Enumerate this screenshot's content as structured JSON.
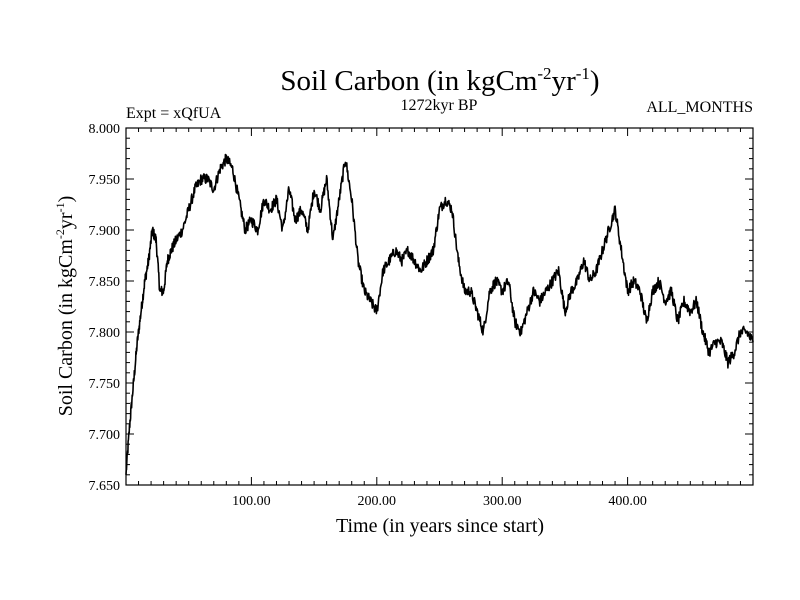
{
  "chart_data": {
    "type": "line",
    "title": {
      "base": "Soil Carbon (in kgCm",
      "sup1": "-2",
      "mid": "yr",
      "sup2": "-1",
      "end": ")"
    },
    "subtitle_left": "Expt = xQfUA",
    "subtitle_center": "1272kyr BP",
    "subtitle_right": "ALL_MONTHS",
    "xlabel": "Time (in years since start)",
    "ylabel": {
      "base": "Soil Carbon (in kgCm",
      "sup1": "-2",
      "mid": "yr",
      "sup2": "-1",
      "end": ")"
    },
    "xlim": [
      0,
      500
    ],
    "ylim": [
      7.65,
      8.0
    ],
    "x_ticks": [
      100,
      200,
      300,
      400
    ],
    "x_tick_labels": [
      "100.00",
      "200.00",
      "300.00",
      "400.00"
    ],
    "y_ticks": [
      7.65,
      7.7,
      7.75,
      7.8,
      7.85,
      7.9,
      7.95,
      8.0
    ],
    "y_tick_labels": [
      "7.650",
      "7.700",
      "7.750",
      "7.800",
      "7.850",
      "7.900",
      "7.950",
      "8.000"
    ],
    "series": [
      {
        "name": "Soil Carbon",
        "color": "#000000",
        "x": [
          0,
          3,
          6,
          9,
          12,
          15,
          18,
          21,
          24,
          27,
          30,
          33,
          36,
          40,
          45,
          50,
          55,
          60,
          65,
          70,
          75,
          80,
          85,
          90,
          95,
          100,
          105,
          110,
          115,
          120,
          125,
          130,
          135,
          140,
          145,
          150,
          155,
          160,
          165,
          170,
          175,
          180,
          185,
          190,
          195,
          200,
          205,
          210,
          215,
          220,
          225,
          230,
          235,
          240,
          245,
          250,
          255,
          260,
          265,
          270,
          275,
          280,
          285,
          290,
          295,
          300,
          305,
          310,
          315,
          320,
          325,
          330,
          335,
          340,
          345,
          350,
          355,
          360,
          365,
          370,
          375,
          380,
          385,
          390,
          395,
          400,
          405,
          410,
          415,
          420,
          425,
          430,
          435,
          440,
          445,
          450,
          455,
          460,
          465,
          470,
          475,
          480,
          485,
          490,
          495,
          500
        ],
        "values": [
          7.66,
          7.71,
          7.75,
          7.79,
          7.82,
          7.85,
          7.87,
          7.9,
          7.89,
          7.84,
          7.84,
          7.87,
          7.88,
          7.89,
          7.9,
          7.92,
          7.94,
          7.95,
          7.95,
          7.94,
          7.96,
          7.97,
          7.96,
          7.93,
          7.9,
          7.91,
          7.9,
          7.93,
          7.92,
          7.93,
          7.9,
          7.94,
          7.91,
          7.92,
          7.9,
          7.94,
          7.92,
          7.95,
          7.89,
          7.93,
          7.97,
          7.93,
          7.87,
          7.84,
          7.83,
          7.82,
          7.86,
          7.87,
          7.88,
          7.87,
          7.88,
          7.87,
          7.86,
          7.87,
          7.88,
          7.92,
          7.93,
          7.92,
          7.87,
          7.84,
          7.84,
          7.82,
          7.8,
          7.84,
          7.85,
          7.84,
          7.85,
          7.81,
          7.8,
          7.82,
          7.84,
          7.83,
          7.84,
          7.85,
          7.86,
          7.82,
          7.84,
          7.85,
          7.87,
          7.85,
          7.86,
          7.88,
          7.9,
          7.92,
          7.88,
          7.84,
          7.85,
          7.84,
          7.81,
          7.84,
          7.85,
          7.83,
          7.84,
          7.81,
          7.83,
          7.82,
          7.83,
          7.8,
          7.78,
          7.79,
          7.79,
          7.77,
          7.78,
          7.8,
          7.8,
          7.79
        ]
      }
    ]
  }
}
